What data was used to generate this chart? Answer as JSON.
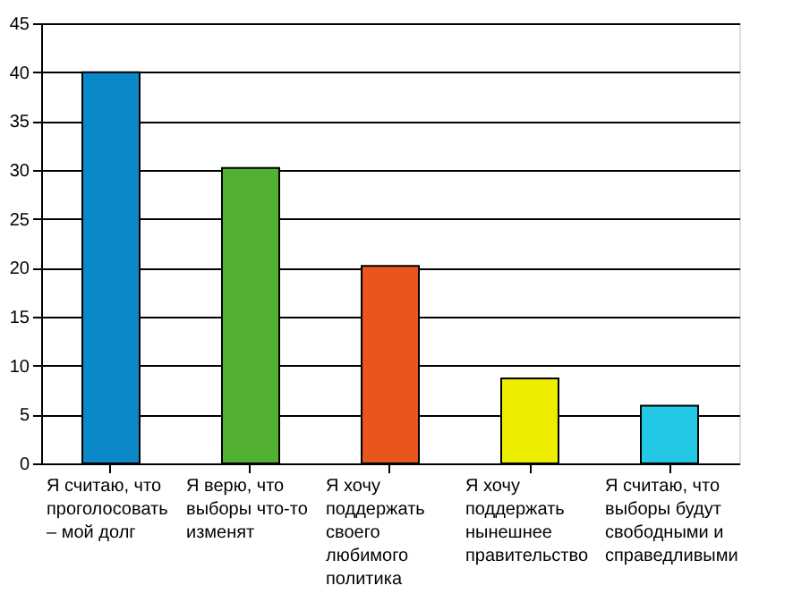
{
  "chart_data": {
    "type": "bar",
    "categories": [
      "Я считаю, что проголосовать – мой долг",
      "Я верю, что выборы что-то изменят",
      "Я хочу поддержать своего любимого политика",
      "Я хочу поддержать нынешнее правительство",
      "Я считаю, что выборы будут свободными и справедливыми"
    ],
    "values": [
      40,
      30.2,
      20.2,
      8.7,
      5.9
    ],
    "colors": [
      "#0a88c8",
      "#52b035",
      "#e8561e",
      "#eded00",
      "#22c8e4"
    ],
    "ylim": [
      0,
      45
    ],
    "yticks": [
      0,
      5,
      10,
      15,
      20,
      25,
      30,
      35,
      40,
      45
    ],
    "grid": "y",
    "legend": false
  }
}
